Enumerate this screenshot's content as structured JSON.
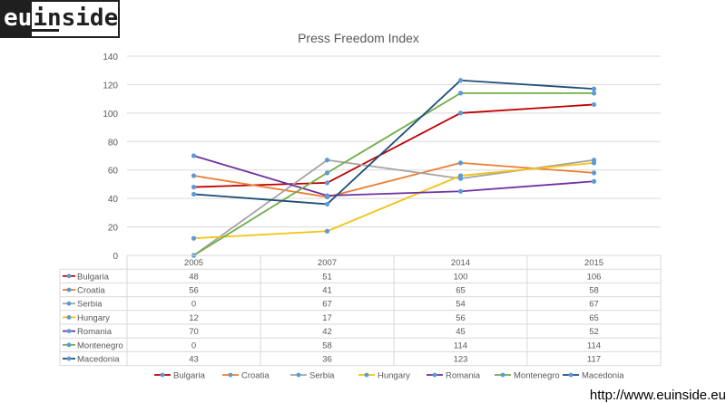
{
  "brand": {
    "logo_left": "eu",
    "logo_right": "inside"
  },
  "footer": {
    "url": "http://www.euinside.eu"
  },
  "chart_data": {
    "type": "line",
    "title": "Press Freedom Index",
    "xlabel": "",
    "ylabel": "",
    "ylim": [
      0,
      140
    ],
    "yticks": [
      "0",
      "20",
      "40",
      "60",
      "80",
      "100",
      "120",
      "140"
    ],
    "grid": true,
    "legend": "bottom",
    "data_table": true,
    "categories": [
      "2005",
      "2007",
      "2014",
      "2015"
    ],
    "series": [
      {
        "name": "Bulgaria",
        "color": "#c00000",
        "values": [
          48,
          51,
          100,
          106
        ]
      },
      {
        "name": "Croatia",
        "color": "#ed7d31",
        "values": [
          56,
          41,
          65,
          58
        ]
      },
      {
        "name": "Serbia",
        "color": "#a5a5a5",
        "values": [
          0,
          67,
          54,
          67
        ]
      },
      {
        "name": "Hungary",
        "color": "#f2c314",
        "values": [
          12,
          17,
          56,
          65
        ]
      },
      {
        "name": "Romania",
        "color": "#7030a0",
        "values": [
          70,
          42,
          45,
          52
        ]
      },
      {
        "name": "Montenegro",
        "color": "#70ad47",
        "values": [
          0,
          58,
          114,
          114
        ]
      },
      {
        "name": "Macedonia",
        "color": "#1f4e79",
        "values": [
          43,
          36,
          123,
          117
        ]
      }
    ],
    "marker_color": "#5b9bd5",
    "grid_color": "#d9d9d9",
    "text_color": "#595959"
  }
}
